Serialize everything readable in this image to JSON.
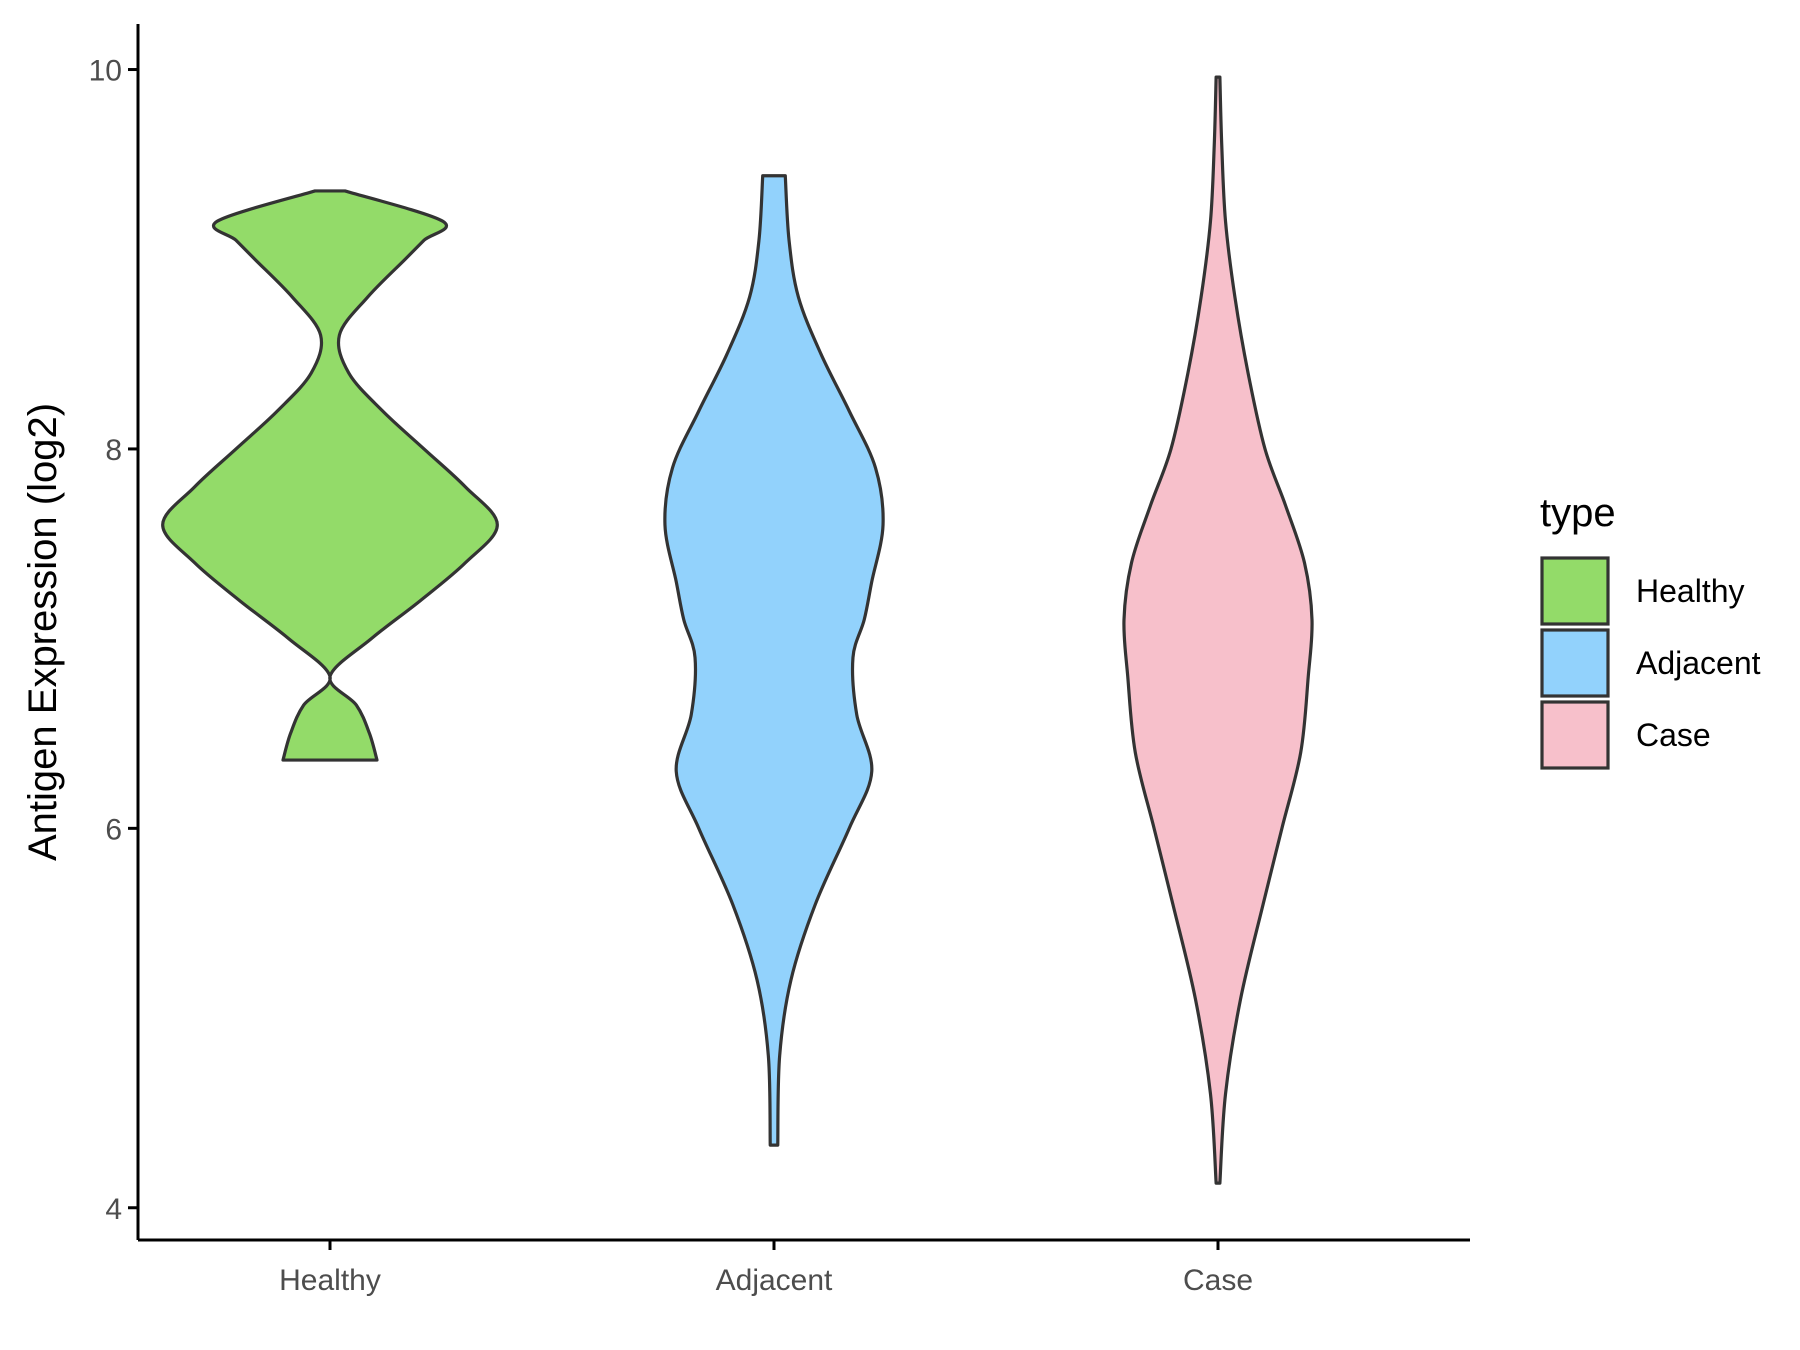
{
  "chart_data": {
    "type": "violin",
    "xlabel": "",
    "ylabel": "Antigen Expression (log2)",
    "ylim": [
      3.83,
      10.24
    ],
    "yticks": [
      4,
      6,
      8,
      10
    ],
    "categories": [
      "Healthy",
      "Adjacent",
      "Case"
    ],
    "legend": {
      "title": "type",
      "position": "right",
      "entries": [
        "Healthy",
        "Adjacent",
        "Case"
      ]
    },
    "grid": false,
    "series": [
      {
        "name": "Healthy",
        "color": "#93db69",
        "min": 6.36,
        "max": 9.36,
        "density": [
          [
            6.36,
            0.25
          ],
          [
            6.5,
            0.21
          ],
          [
            6.65,
            0.14
          ],
          [
            6.8,
            0.0
          ],
          [
            7.0,
            -0.22
          ],
          [
            7.2,
            -0.48
          ],
          [
            7.4,
            -0.72
          ],
          [
            7.6,
            -0.89
          ],
          [
            7.8,
            -0.72
          ],
          [
            8.0,
            -0.5
          ],
          [
            8.2,
            -0.28
          ],
          [
            8.4,
            -0.1
          ],
          [
            8.6,
            0.05
          ],
          [
            8.8,
            0.2
          ],
          [
            9.0,
            0.4
          ],
          [
            9.1,
            0.5
          ],
          [
            9.2,
            0.6
          ],
          [
            9.36,
            0.08
          ]
        ]
      },
      {
        "name": "Adjacent",
        "color": "#92d2fc",
        "min": 4.33,
        "max": 9.44,
        "density": [
          [
            4.33,
            0.02
          ],
          [
            4.8,
            0.03
          ],
          [
            5.2,
            0.09
          ],
          [
            5.6,
            0.22
          ],
          [
            6.0,
            0.4
          ],
          [
            6.3,
            0.52
          ],
          [
            6.6,
            0.44
          ],
          [
            6.9,
            0.42
          ],
          [
            7.1,
            0.48
          ],
          [
            7.3,
            0.52
          ],
          [
            7.6,
            0.58
          ],
          [
            7.9,
            0.54
          ],
          [
            8.2,
            0.4
          ],
          [
            8.5,
            0.25
          ],
          [
            8.8,
            0.13
          ],
          [
            9.1,
            0.08
          ],
          [
            9.44,
            0.06
          ]
        ]
      },
      {
        "name": "Case",
        "color": "#f7c0cb",
        "min": 4.13,
        "max": 9.96,
        "density": [
          [
            4.13,
            0.01
          ],
          [
            4.6,
            0.04
          ],
          [
            5.1,
            0.12
          ],
          [
            5.6,
            0.24
          ],
          [
            6.0,
            0.34
          ],
          [
            6.4,
            0.44
          ],
          [
            6.8,
            0.48
          ],
          [
            7.1,
            0.5
          ],
          [
            7.4,
            0.46
          ],
          [
            7.7,
            0.36
          ],
          [
            8.0,
            0.25
          ],
          [
            8.4,
            0.16
          ],
          [
            8.8,
            0.09
          ],
          [
            9.2,
            0.04
          ],
          [
            9.6,
            0.02
          ],
          [
            9.96,
            0.01
          ]
        ]
      }
    ]
  }
}
